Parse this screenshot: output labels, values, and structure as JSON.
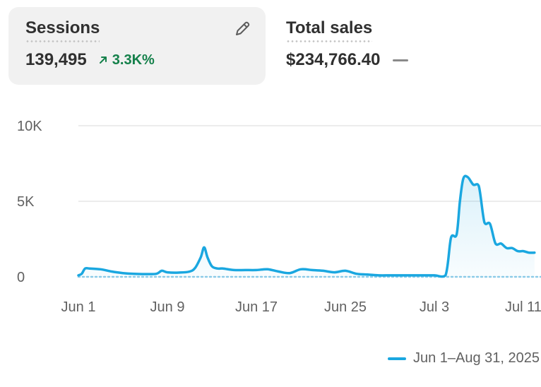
{
  "metrics": {
    "sessions": {
      "label": "Sessions",
      "value": "139,495",
      "change": "3.3K%",
      "change_direction": "up",
      "edit_icon": "pencil-icon"
    },
    "total_sales": {
      "label": "Total sales",
      "value": "$234,766.40",
      "change_icon": "flat-dash-icon"
    }
  },
  "colors": {
    "series": "#1aa7e0",
    "positive": "#14804a",
    "grid": "#e6e6e6",
    "axis_text": "#616161"
  },
  "chart_data": {
    "type": "area",
    "y_tick_labels": [
      "10K",
      "5K",
      "0"
    ],
    "y_ticks": [
      10000,
      5000,
      0
    ],
    "ylim": [
      0,
      10000
    ],
    "x_tick_labels": [
      "Jun 1",
      "Jun 9",
      "Jun 17",
      "Jun 25",
      "Jul 3",
      "Jul 11"
    ],
    "x_tick_days": [
      1,
      9,
      17,
      25,
      33,
      41
    ],
    "xlim_days": [
      1,
      42
    ],
    "grid": true,
    "legend_position": "bottom-right",
    "series": [
      {
        "name": "Jun 1–Aug 31, 2025",
        "x_days": [
          1,
          1.3,
          1.6,
          2,
          3,
          4,
          5,
          6,
          7,
          8,
          8.5,
          9,
          10,
          11,
          11.5,
          12,
          12.3,
          12.6,
          13,
          13.5,
          14,
          15,
          16,
          17,
          18,
          19,
          20,
          21,
          22,
          23,
          24,
          25,
          26,
          27,
          28,
          29,
          30,
          31,
          32,
          33,
          34,
          34.5,
          35,
          35.3,
          35.6,
          36,
          36.5,
          37,
          37.5,
          38,
          38.5,
          39,
          39.5,
          40,
          40.5,
          41,
          41.5,
          42
        ],
        "values": [
          100,
          200,
          550,
          550,
          500,
          350,
          250,
          200,
          180,
          200,
          400,
          300,
          280,
          350,
          600,
          1300,
          1950,
          1300,
          700,
          550,
          550,
          450,
          450,
          450,
          500,
          350,
          250,
          500,
          450,
          400,
          300,
          400,
          200,
          150,
          100,
          100,
          100,
          100,
          100,
          100,
          100,
          2600,
          2800,
          5000,
          6500,
          6600,
          6100,
          6000,
          3600,
          3500,
          2200,
          2200,
          1900,
          1900,
          1700,
          1700,
          1600,
          1600
        ]
      }
    ]
  }
}
